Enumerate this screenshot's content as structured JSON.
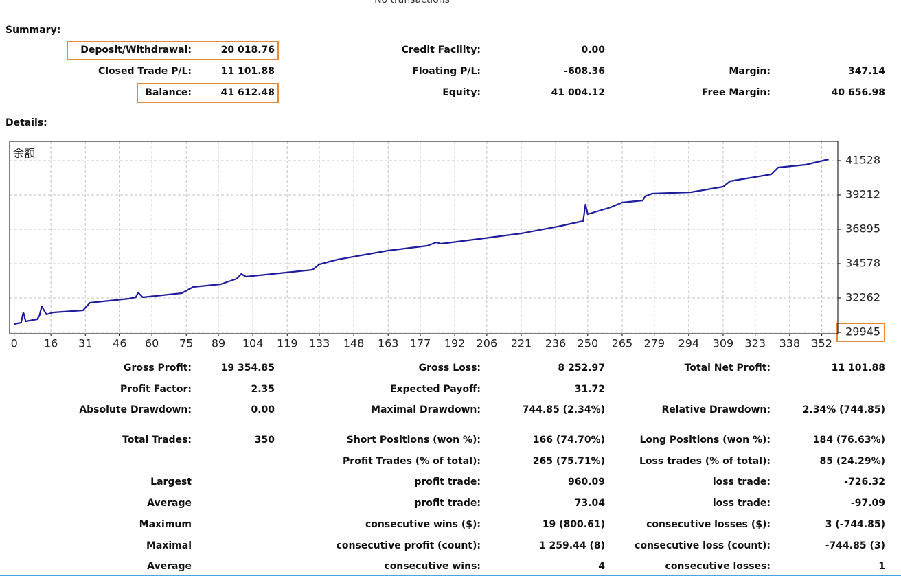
{
  "header": {
    "title": "No transactions"
  },
  "summary": {
    "title": "Summary:",
    "rows": [
      [
        "Deposit/Withdrawal:",
        "20 018.76",
        "Credit Facility:",
        "0.00",
        null,
        null
      ],
      [
        "Closed Trade P/L:",
        "11 101.88",
        "Floating P/L:",
        "-608.36",
        "Margin:",
        "347.14"
      ],
      [
        "Balance:",
        "41 612.48",
        "Equity:",
        "41 004.12",
        "Free Margin:",
        "40 656.98"
      ]
    ]
  },
  "details": {
    "title": "Details:",
    "rows": [
      [
        "Gross Profit:",
        "19 354.85",
        "Gross Loss:",
        "8 252.97",
        "Total Net Profit:",
        "11 101.88"
      ],
      [
        "Profit Factor:",
        "2.35",
        "Expected Payoff:",
        "31.72",
        null,
        null
      ],
      [
        "Absolute Drawdown:",
        "0.00",
        "Maximal Drawdown:",
        "744.85 (2.34%)",
        "Relative Drawdown:",
        "2.34% (744.85)"
      ],
      [
        "Total Trades:",
        "350",
        "Short Positions (won %):",
        "166 (74.70%)",
        "Long Positions (won %):",
        "184 (76.63%)"
      ],
      [
        null,
        null,
        "Profit Trades (% of total):",
        "265 (75.71%)",
        "Loss trades (% of total):",
        "85 (24.29%)"
      ],
      [
        "Largest",
        null,
        "profit trade:",
        "960.09",
        "loss trade:",
        "-726.32"
      ],
      [
        "Average",
        null,
        "profit trade:",
        "73.04",
        "loss trade:",
        "-97.09"
      ],
      [
        "Maximum",
        null,
        "consecutive wins ($):",
        "19 (800.61)",
        "consecutive losses ($):",
        "3 (-744.85)"
      ],
      [
        "Maximal",
        null,
        "consecutive profit (count):",
        "1 259.44 (8)",
        "consecutive loss (count):",
        "-744.85 (3)"
      ],
      [
        "Average",
        null,
        "consecutive wins:",
        "4",
        "consecutive losses:",
        "1"
      ]
    ]
  },
  "chart_data": {
    "type": "line",
    "title": "余额",
    "color": "#1c1c9c",
    "grid": true,
    "x": [
      0,
      3,
      4,
      5,
      10,
      11,
      12,
      14,
      17,
      30,
      33,
      50,
      53,
      54,
      56,
      73,
      78,
      90,
      97,
      99,
      101,
      130,
      133,
      141,
      163,
      180,
      184,
      186,
      205,
      221,
      237,
      248,
      249,
      250,
      260,
      265,
      274,
      275,
      278,
      295,
      309,
      312,
      330,
      333,
      345,
      355
    ],
    "values": [
      30501,
      30594,
      31289,
      30686,
      30825,
      31057,
      31706,
      31150,
      31289,
      31428,
      31937,
      32215,
      32308,
      32632,
      32308,
      32586,
      33003,
      33188,
      33559,
      33883,
      33698,
      34161,
      34532,
      34856,
      35458,
      35783,
      36015,
      35921,
      36292,
      36617,
      37080,
      37451,
      38562,
      37914,
      38377,
      38701,
      38840,
      39118,
      39304,
      39396,
      39767,
      40138,
      40601,
      41065,
      41250,
      41620
    ],
    "xlim": [
      -2,
      359
    ],
    "ylim": [
      29852,
      42825
    ],
    "xticks": [
      0,
      16,
      31,
      46,
      60,
      75,
      89,
      104,
      119,
      133,
      148,
      163,
      177,
      192,
      206,
      221,
      236,
      250,
      265,
      279,
      294,
      309,
      323,
      338,
      352
    ],
    "yticks": [
      29945,
      32262,
      34578,
      36895,
      39212,
      41528
    ]
  }
}
